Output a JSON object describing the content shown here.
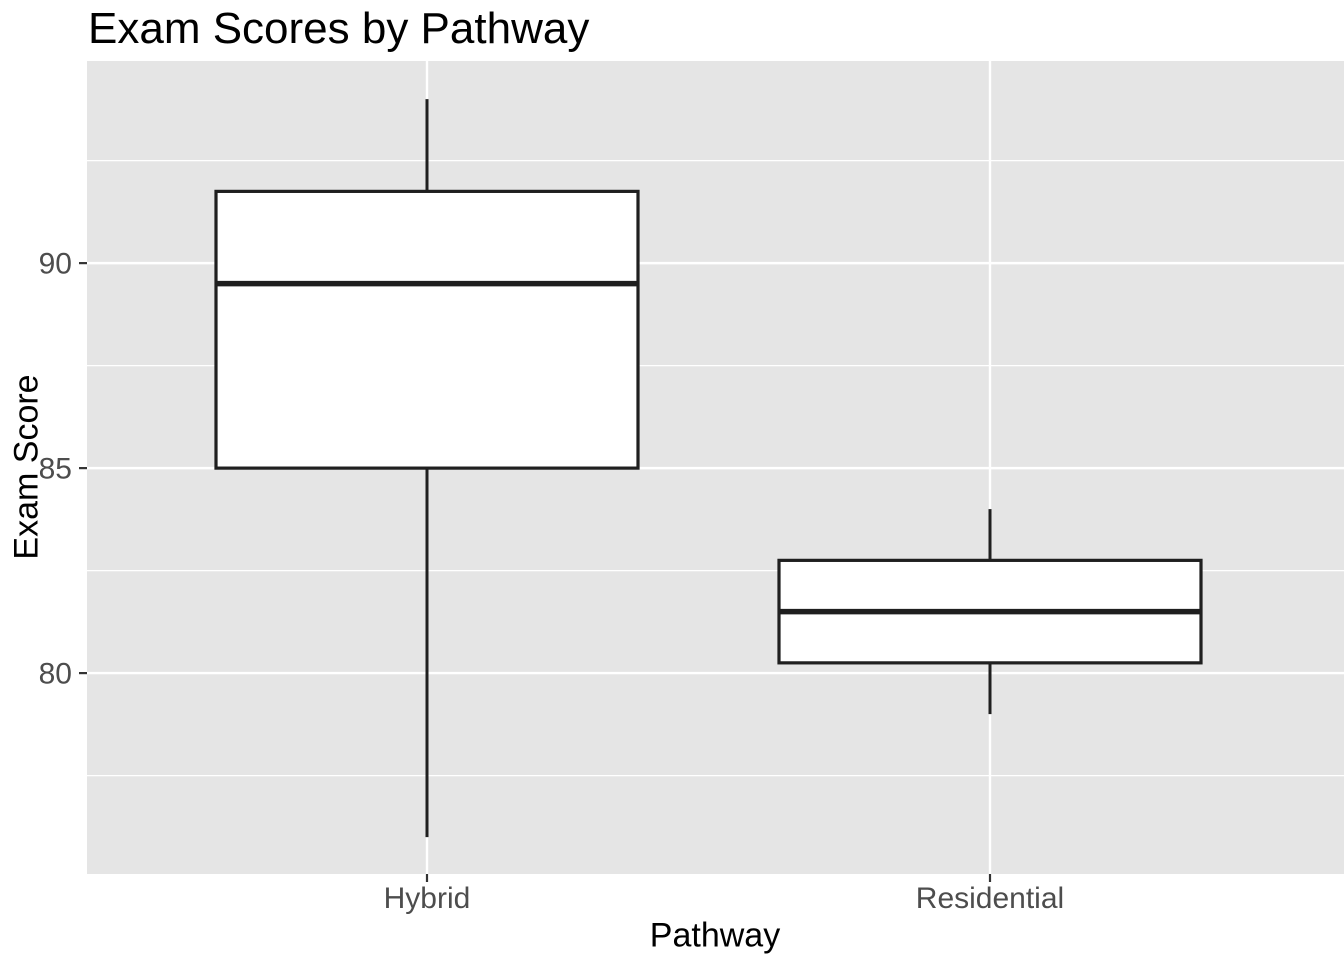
{
  "figure": {
    "background": "#FFFFFF"
  },
  "chart_data": {
    "type": "boxplot",
    "title": "Exam Scores by Pathway",
    "xlabel": "Pathway",
    "ylabel": "Exam Score",
    "categories": [
      "Hybrid",
      "Residential"
    ],
    "series": [
      {
        "name": "Hybrid",
        "min": 76,
        "q1": 85,
        "median": 89.5,
        "q3": 91.75,
        "max": 94
      },
      {
        "name": "Residential",
        "min": 79,
        "q1": 80.25,
        "median": 81.5,
        "q3": 82.75,
        "max": 84
      }
    ],
    "y_axis": {
      "tick_labels": [
        "90",
        "85",
        "80"
      ],
      "ticks": [
        90,
        85,
        80
      ],
      "minor_ticks": [
        92.5,
        87.5,
        82.5,
        77.5
      ],
      "ylim": [
        75.1,
        94.93
      ]
    },
    "x_axis": {
      "tick_labels": [
        "Hybrid",
        "Residential"
      ]
    },
    "grid": true,
    "legend": false,
    "outliers": [],
    "colors": {
      "panel_background": "#E5E5E5",
      "grid": "#FFFFFF",
      "box_fill": "#FFFFFF",
      "box_stroke": "#1F1F1F",
      "whisker": "#1F1F1F",
      "median": "#1F1F1F",
      "tick_mark": "#333333",
      "tick_text": "#4D4D4D",
      "title_text": "#000000"
    }
  }
}
